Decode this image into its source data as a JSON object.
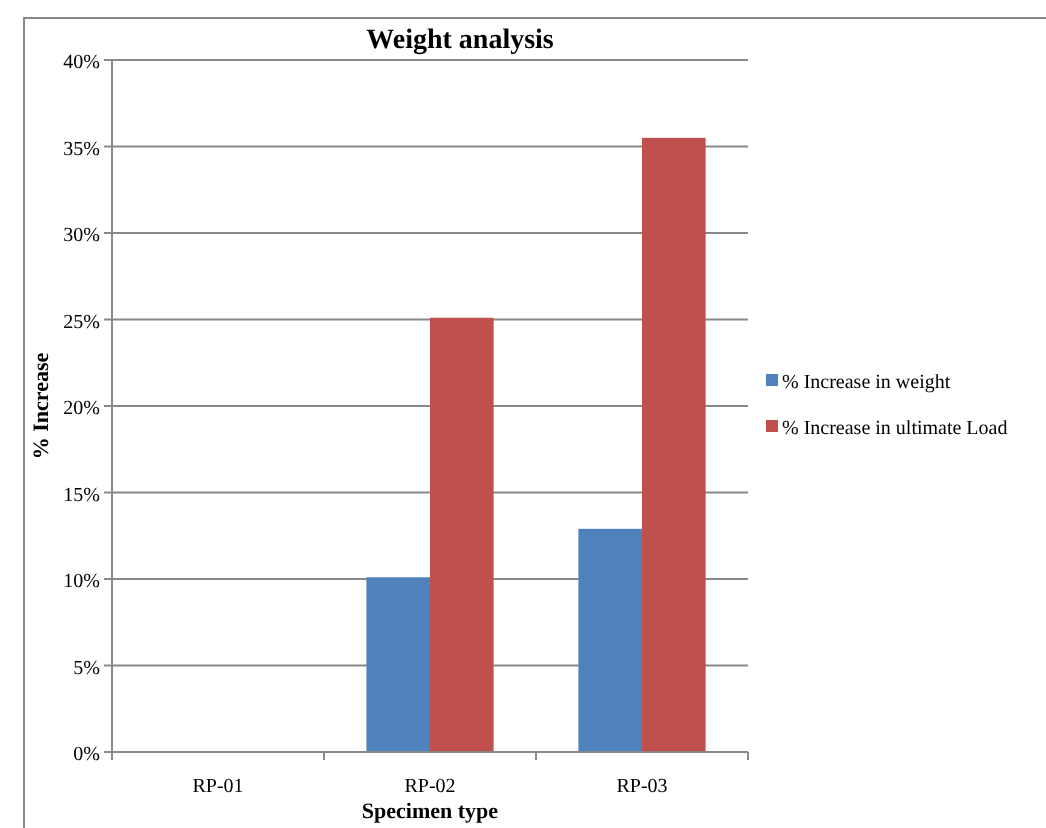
{
  "chart_data": {
    "type": "bar",
    "title": "Weight analysis",
    "xlabel": "Specimen type",
    "ylabel": "% Increase",
    "categories": [
      "RP-01",
      "RP-02",
      "RP-03"
    ],
    "series": [
      {
        "name": "% Increase in weight",
        "color": "#4f81bd",
        "values": [
          0,
          10.1,
          12.9
        ]
      },
      {
        "name": "% Increase in ultimate Load",
        "color": "#c0504d",
        "values": [
          0,
          25.1,
          35.5
        ]
      }
    ],
    "ylim": [
      0,
      40
    ],
    "yticks": [
      {
        "value": 0,
        "label": "0%"
      },
      {
        "value": 5,
        "label": "5%"
      },
      {
        "value": 10,
        "label": "10%"
      },
      {
        "value": 15,
        "label": "15%"
      },
      {
        "value": 20,
        "label": "20%"
      },
      {
        "value": 25,
        "label": "25%"
      },
      {
        "value": 30,
        "label": "30%"
      },
      {
        "value": 35,
        "label": "35%"
      },
      {
        "value": 40,
        "label": "40%"
      }
    ],
    "grid": "y",
    "legend": "right"
  }
}
